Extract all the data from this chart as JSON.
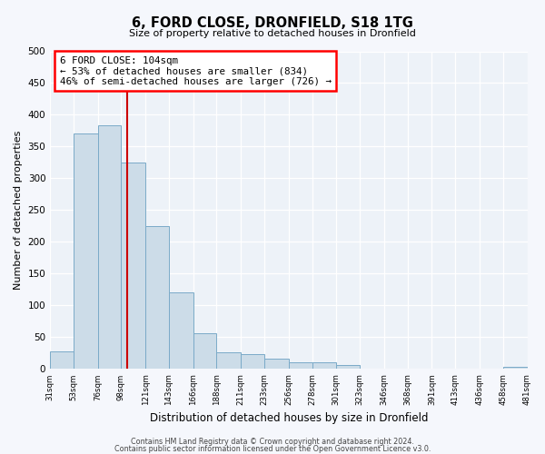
{
  "title": "6, FORD CLOSE, DRONFIELD, S18 1TG",
  "subtitle": "Size of property relative to detached houses in Dronfield",
  "xlabel": "Distribution of detached houses by size in Dronfield",
  "ylabel": "Number of detached properties",
  "bar_color": "#ccdce8",
  "bar_edge_color": "#7aaac8",
  "background_color": "#edf2f8",
  "grid_color": "#ffffff",
  "vline_x": 104,
  "vline_color": "#cc0000",
  "annotation_text": "6 FORD CLOSE: 104sqm\n← 53% of detached houses are smaller (834)\n46% of semi-detached houses are larger (726) →",
  "footer_line1": "Contains HM Land Registry data © Crown copyright and database right 2024.",
  "footer_line2": "Contains public sector information licensed under the Open Government Licence v3.0.",
  "bins": [
    31,
    53,
    76,
    98,
    121,
    143,
    166,
    188,
    211,
    233,
    256,
    278,
    301,
    323,
    346,
    368,
    391,
    413,
    436,
    458,
    481
  ],
  "counts": [
    28,
    370,
    383,
    325,
    225,
    120,
    57,
    27,
    23,
    16,
    10,
    11,
    6,
    1,
    1,
    1,
    1,
    0,
    0,
    3
  ],
  "ylim": [
    0,
    500
  ],
  "yticks": [
    0,
    50,
    100,
    150,
    200,
    250,
    300,
    350,
    400,
    450,
    500
  ],
  "figsize": [
    6.0,
    5.0
  ],
  "dpi": 100
}
